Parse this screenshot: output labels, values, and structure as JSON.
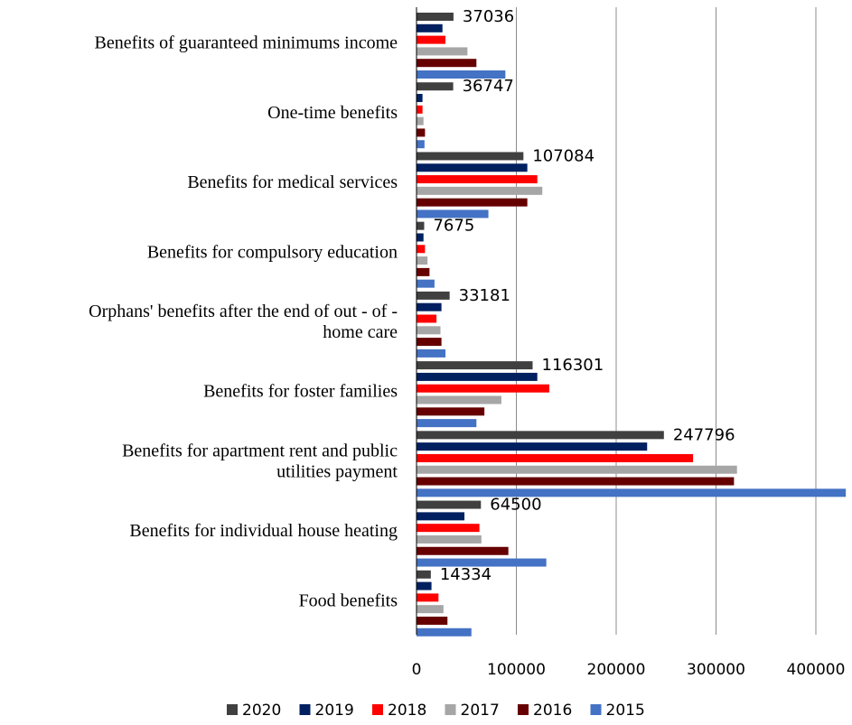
{
  "chart_data": {
    "type": "bar",
    "orientation": "horizontal",
    "title": "",
    "xlabel": "",
    "ylabel": "",
    "xlim": [
      0,
      430000
    ],
    "x_ticks": [
      "0",
      "100000",
      "200000",
      "300000",
      "400000"
    ],
    "grid": "vertical",
    "legend_position": "bottom",
    "categories": [
      [
        "Benefits of guaranteed minimums income"
      ],
      [
        "One-time benefits"
      ],
      [
        "Benefits for medical services"
      ],
      [
        "Benefits for compulsory education"
      ],
      [
        "Orphans' benefits after the end of out - of -",
        "home care"
      ],
      [
        "Benefits for foster families"
      ],
      [
        "Benefits for apartment rent and public",
        "utilities payment"
      ],
      [
        "Benefits for individual house heating"
      ],
      [
        "Food benefits"
      ]
    ],
    "series": [
      {
        "name": "2020",
        "color": "#404040",
        "values": [
          37036,
          36747,
          107084,
          7675,
          33181,
          116301,
          247796,
          64500,
          14334
        ]
      },
      {
        "name": "2019",
        "color": "#002060",
        "values": [
          26000,
          6000,
          111000,
          7000,
          25000,
          121000,
          231000,
          48000,
          15000
        ]
      },
      {
        "name": "2018",
        "color": "#ff0000",
        "values": [
          29000,
          6000,
          121000,
          8500,
          20000,
          133000,
          277000,
          63000,
          22000
        ]
      },
      {
        "name": "2017",
        "color": "#a6a6a6",
        "values": [
          51000,
          7000,
          126000,
          11000,
          24000,
          85000,
          321000,
          65000,
          27000
        ]
      },
      {
        "name": "2016",
        "color": "#660000",
        "values": [
          60000,
          8500,
          111000,
          13000,
          25000,
          68000,
          318000,
          92000,
          31000
        ]
      },
      {
        "name": "2015",
        "color": "#4472c4",
        "values": [
          89000,
          8000,
          72000,
          18000,
          29000,
          60000,
          430000,
          130000,
          55000
        ]
      }
    ],
    "data_labels": [
      "37036",
      "36747",
      "107084",
      "7675",
      "33181",
      "116301",
      "247796",
      "64500",
      "14334"
    ]
  }
}
